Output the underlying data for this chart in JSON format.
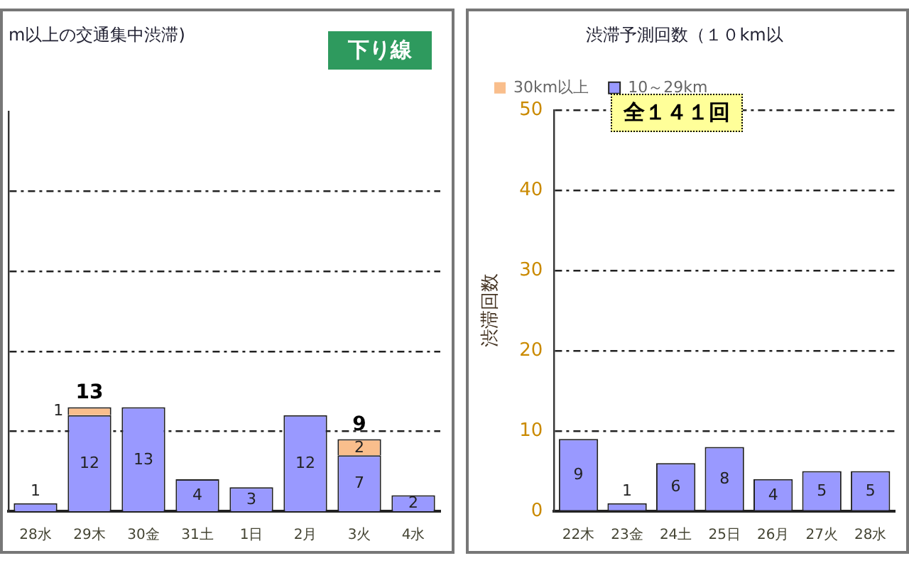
{
  "chart_data": [
    {
      "type": "bar",
      "title": "m以上の交通集中渋滞)",
      "annotations": [
        "下り線"
      ],
      "categories": [
        "28水",
        "29木",
        "30金",
        "31土",
        "1日",
        "2月",
        "3火",
        "4水"
      ],
      "stacked": true,
      "series": [
        {
          "color": "#9999ff",
          "values": [
            1,
            12,
            13,
            4,
            3,
            12,
            7,
            2
          ],
          "value_labels": [
            "1",
            "12",
            "13",
            "4",
            "3",
            "12",
            "7",
            "2"
          ]
        },
        {
          "color": "#f9be8c",
          "values": [
            0,
            1,
            0,
            0,
            0,
            0,
            2,
            0
          ],
          "value_labels": [
            null,
            "1",
            null,
            null,
            null,
            null,
            "2",
            null
          ]
        }
      ],
      "totals": [
        null,
        "13",
        null,
        null,
        null,
        null,
        "9",
        null
      ],
      "ylim": [
        0,
        50
      ],
      "yticks": [
        {
          "value": 10,
          "label": null
        },
        {
          "value": 20,
          "label": null
        },
        {
          "value": 30,
          "label": null
        },
        {
          "value": 40,
          "label": null
        }
      ],
      "tick_labels": "x",
      "grid": "y",
      "legend": false
    },
    {
      "type": "bar",
      "title": "渋滞予測回数（１０km以",
      "ylabel": "渋滞回数",
      "annotations": [
        "全１４１回"
      ],
      "categories": [
        "22木",
        "23金",
        "24土",
        "25日",
        "26月",
        "27火",
        "28水"
      ],
      "stacked": true,
      "series": [
        {
          "name": "10～29km",
          "color": "#9999ff",
          "values": [
            9,
            1,
            6,
            8,
            4,
            5,
            5
          ],
          "value_labels": [
            "9",
            "1",
            "6",
            "8",
            "4",
            "5",
            "5"
          ]
        },
        {
          "name": "30km以上",
          "color": "#f9be8c",
          "values": [
            0,
            0,
            0,
            0,
            0,
            0,
            0
          ]
        }
      ],
      "ylim": [
        0,
        50
      ],
      "yticks": [
        0,
        10,
        20,
        30,
        40,
        50
      ],
      "grid": "y",
      "legend": "top left"
    }
  ]
}
